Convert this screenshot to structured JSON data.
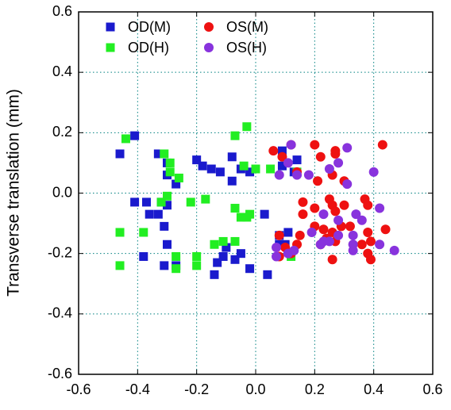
{
  "chart_data": {
    "type": "scatter",
    "y_label": "Transverse translation (mm)",
    "xlim": [
      -0.6,
      0.6
    ],
    "ylim": [
      -0.6,
      0.6
    ],
    "xticks": [
      -0.6,
      -0.4,
      -0.2,
      {
        "value": 0,
        "label": "0.0"
      },
      0.2,
      0.4,
      0.6
    ],
    "yticks": [
      -0.6,
      -0.4,
      -0.2,
      {
        "value": 0,
        "label": "0.0"
      },
      0.2,
      0.4,
      0.6
    ],
    "grid": true,
    "legend": "top-left",
    "series": [
      {
        "name": "OD(M)",
        "color": "#1a1acd",
        "marker": "square",
        "x": [
          -0.46,
          -0.41,
          -0.33,
          -0.3,
          -0.3,
          -0.27,
          -0.2,
          -0.18,
          -0.15,
          -0.12,
          -0.08,
          -0.08,
          -0.05,
          -0.02,
          -0.41,
          -0.37,
          -0.32,
          -0.36,
          -0.3,
          -0.33,
          -0.31,
          -0.3,
          -0.38,
          -0.31,
          -0.27,
          -0.14,
          -0.13,
          -0.11,
          -0.1,
          -0.07,
          -0.05,
          -0.02,
          0.04,
          0.03,
          0.08,
          0.08,
          0.1,
          0.11,
          0.09,
          0.14,
          0.13,
          0.09
        ],
        "values": [
          0.13,
          0.19,
          0.13,
          0.1,
          0.06,
          0.03,
          0.11,
          0.09,
          0.08,
          0.07,
          0.12,
          0.04,
          0.08,
          0.07,
          -0.03,
          -0.03,
          -0.03,
          -0.07,
          -0.04,
          -0.07,
          -0.11,
          -0.17,
          -0.21,
          -0.24,
          -0.24,
          -0.27,
          -0.23,
          -0.21,
          -0.18,
          -0.22,
          -0.2,
          -0.25,
          -0.27,
          -0.07,
          -0.14,
          -0.17,
          -0.17,
          -0.13,
          0.09,
          0.11,
          0.07,
          0.14
        ]
      },
      {
        "name": "OD(H)",
        "color": "#22ee22",
        "marker": "square",
        "x": [
          -0.44,
          -0.31,
          -0.29,
          -0.29,
          -0.26,
          -0.3,
          -0.32,
          -0.22,
          -0.17,
          -0.46,
          -0.38,
          -0.46,
          -0.27,
          -0.27,
          -0.2,
          -0.2,
          -0.14,
          -0.07,
          -0.05,
          -0.03,
          -0.02,
          -0.07,
          -0.03,
          -0.04,
          0.0,
          0.05,
          0.14,
          0.12,
          -0.07,
          -0.11
        ],
        "values": [
          0.18,
          0.13,
          0.1,
          0.07,
          0.05,
          -0.01,
          -0.03,
          -0.03,
          -0.02,
          -0.13,
          -0.13,
          -0.24,
          -0.21,
          -0.25,
          -0.21,
          -0.24,
          -0.17,
          -0.05,
          -0.08,
          -0.08,
          -0.07,
          0.19,
          0.22,
          0.09,
          0.08,
          0.08,
          0.07,
          -0.21,
          -0.16,
          -0.16
        ]
      },
      {
        "name": "OS(M)",
        "color": "#ee1111",
        "marker": "circle",
        "x": [
          0.06,
          0.09,
          0.12,
          0.14,
          0.2,
          0.22,
          0.27,
          0.27,
          0.26,
          0.21,
          0.3,
          0.43,
          0.16,
          0.16,
          0.15,
          0.14,
          0.1,
          0.08,
          0.08,
          0.12,
          0.2,
          0.23,
          0.24,
          0.26,
          0.26,
          0.25,
          0.27,
          0.3,
          0.29,
          0.32,
          0.26,
          0.36,
          0.38,
          0.39,
          0.38,
          0.39,
          0.44,
          0.37,
          0.38,
          0.27,
          0.2,
          0.22
        ],
        "values": [
          0.14,
          0.12,
          0.16,
          0.07,
          0.16,
          0.12,
          0.14,
          0.13,
          0.06,
          0.04,
          0.04,
          0.16,
          -0.03,
          -0.07,
          -0.14,
          -0.17,
          -0.18,
          -0.21,
          -0.14,
          -0.2,
          -0.11,
          -0.12,
          -0.15,
          -0.13,
          -0.04,
          -0.02,
          -0.06,
          -0.04,
          -0.11,
          -0.11,
          -0.22,
          -0.17,
          -0.13,
          -0.16,
          -0.2,
          -0.22,
          -0.12,
          -0.02,
          -0.04,
          -0.16,
          -0.05,
          -0.17
        ]
      },
      {
        "name": "OS(H)",
        "color": "#8833dd",
        "marker": "circle",
        "x": [
          0.12,
          0.11,
          0.08,
          0.14,
          0.18,
          0.25,
          0.28,
          0.31,
          0.4,
          0.31,
          0.34,
          0.36,
          0.42,
          0.23,
          0.28,
          0.25,
          0.33,
          0.33,
          0.33,
          0.47,
          0.07,
          0.07,
          0.11,
          0.13,
          0.23,
          0.22,
          0.19,
          0.28,
          0.42
        ],
        "values": [
          0.16,
          0.1,
          0.06,
          0.06,
          0.06,
          0.08,
          0.1,
          0.15,
          0.07,
          0.03,
          -0.07,
          -0.09,
          -0.05,
          -0.07,
          -0.09,
          -0.16,
          -0.14,
          -0.17,
          -0.19,
          -0.19,
          -0.18,
          -0.21,
          -0.2,
          -0.19,
          -0.16,
          -0.17,
          -0.13,
          -0.14,
          -0.17
        ]
      }
    ]
  }
}
